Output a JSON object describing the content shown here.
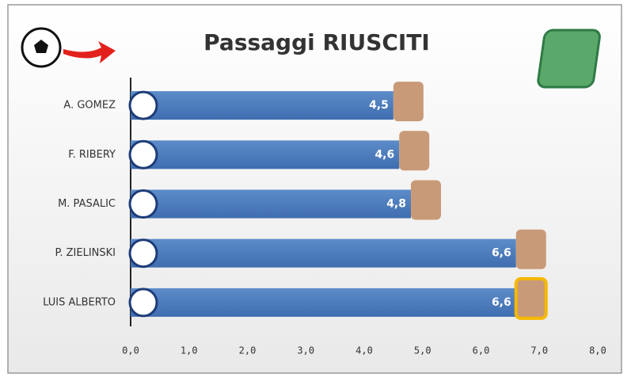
{
  "chart_data": {
    "type": "bar",
    "orientation": "horizontal",
    "title": "Passaggi RIUSCITI",
    "categories": [
      "A. GOMEZ",
      "F. RIBERY",
      "M. PASALIC",
      "P. ZIELINSKI",
      "LUIS ALBERTO"
    ],
    "values": [
      4.5,
      4.6,
      4.8,
      6.6,
      6.6
    ],
    "value_labels": [
      "4,5",
      "4,6",
      "4,8",
      "6,6",
      "6,6"
    ],
    "color": "#4f7fc0",
    "xlim": [
      0,
      8
    ],
    "xticks": [
      {
        "value": 0,
        "label": "0,0"
      },
      {
        "value": 1,
        "label": "1,0"
      },
      {
        "value": 2,
        "label": "2,0"
      },
      {
        "value": 3,
        "label": "3,0"
      },
      {
        "value": 4,
        "label": "4,0"
      },
      {
        "value": 5,
        "label": "5,0"
      },
      {
        "value": 6,
        "label": "6,0"
      },
      {
        "value": 7,
        "label": "7,0"
      },
      {
        "value": 8,
        "label": "8,0"
      }
    ],
    "grid": false
  }
}
